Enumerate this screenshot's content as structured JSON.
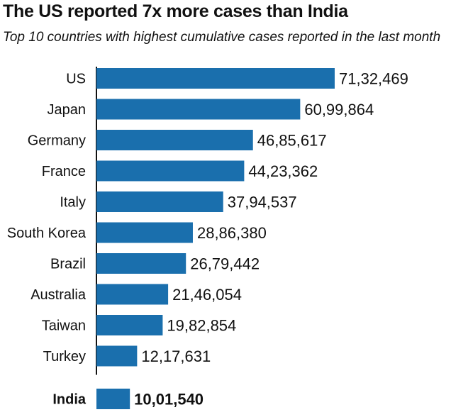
{
  "chart_data": {
    "type": "bar",
    "orientation": "horizontal",
    "title": "The US reported 7x more cases than India",
    "subtitle": "Top 10 countries with highest cumulative cases reported in the last month",
    "categories": [
      "US",
      "Japan",
      "Germany",
      "France",
      "Italy",
      "South Korea",
      "Brazil",
      "Australia",
      "Taiwan",
      "Turkey",
      "India"
    ],
    "values": [
      7132469,
      6099864,
      4685617,
      4423362,
      3794537,
      2886380,
      2679442,
      2146054,
      1982854,
      1217631,
      1001540
    ],
    "value_labels": [
      "71,32,469",
      "60,99,864",
      "46,85,617",
      "44,23,362",
      "37,94,537",
      "28,86,380",
      "26,79,442",
      "21,46,054",
      "19,82,854",
      "12,17,631",
      "10,01,540"
    ],
    "highlight": "India",
    "bar_color": "#1a6fad",
    "text_color": "#111111",
    "axis_color": "#111111",
    "grid": false,
    "legend": "none"
  }
}
